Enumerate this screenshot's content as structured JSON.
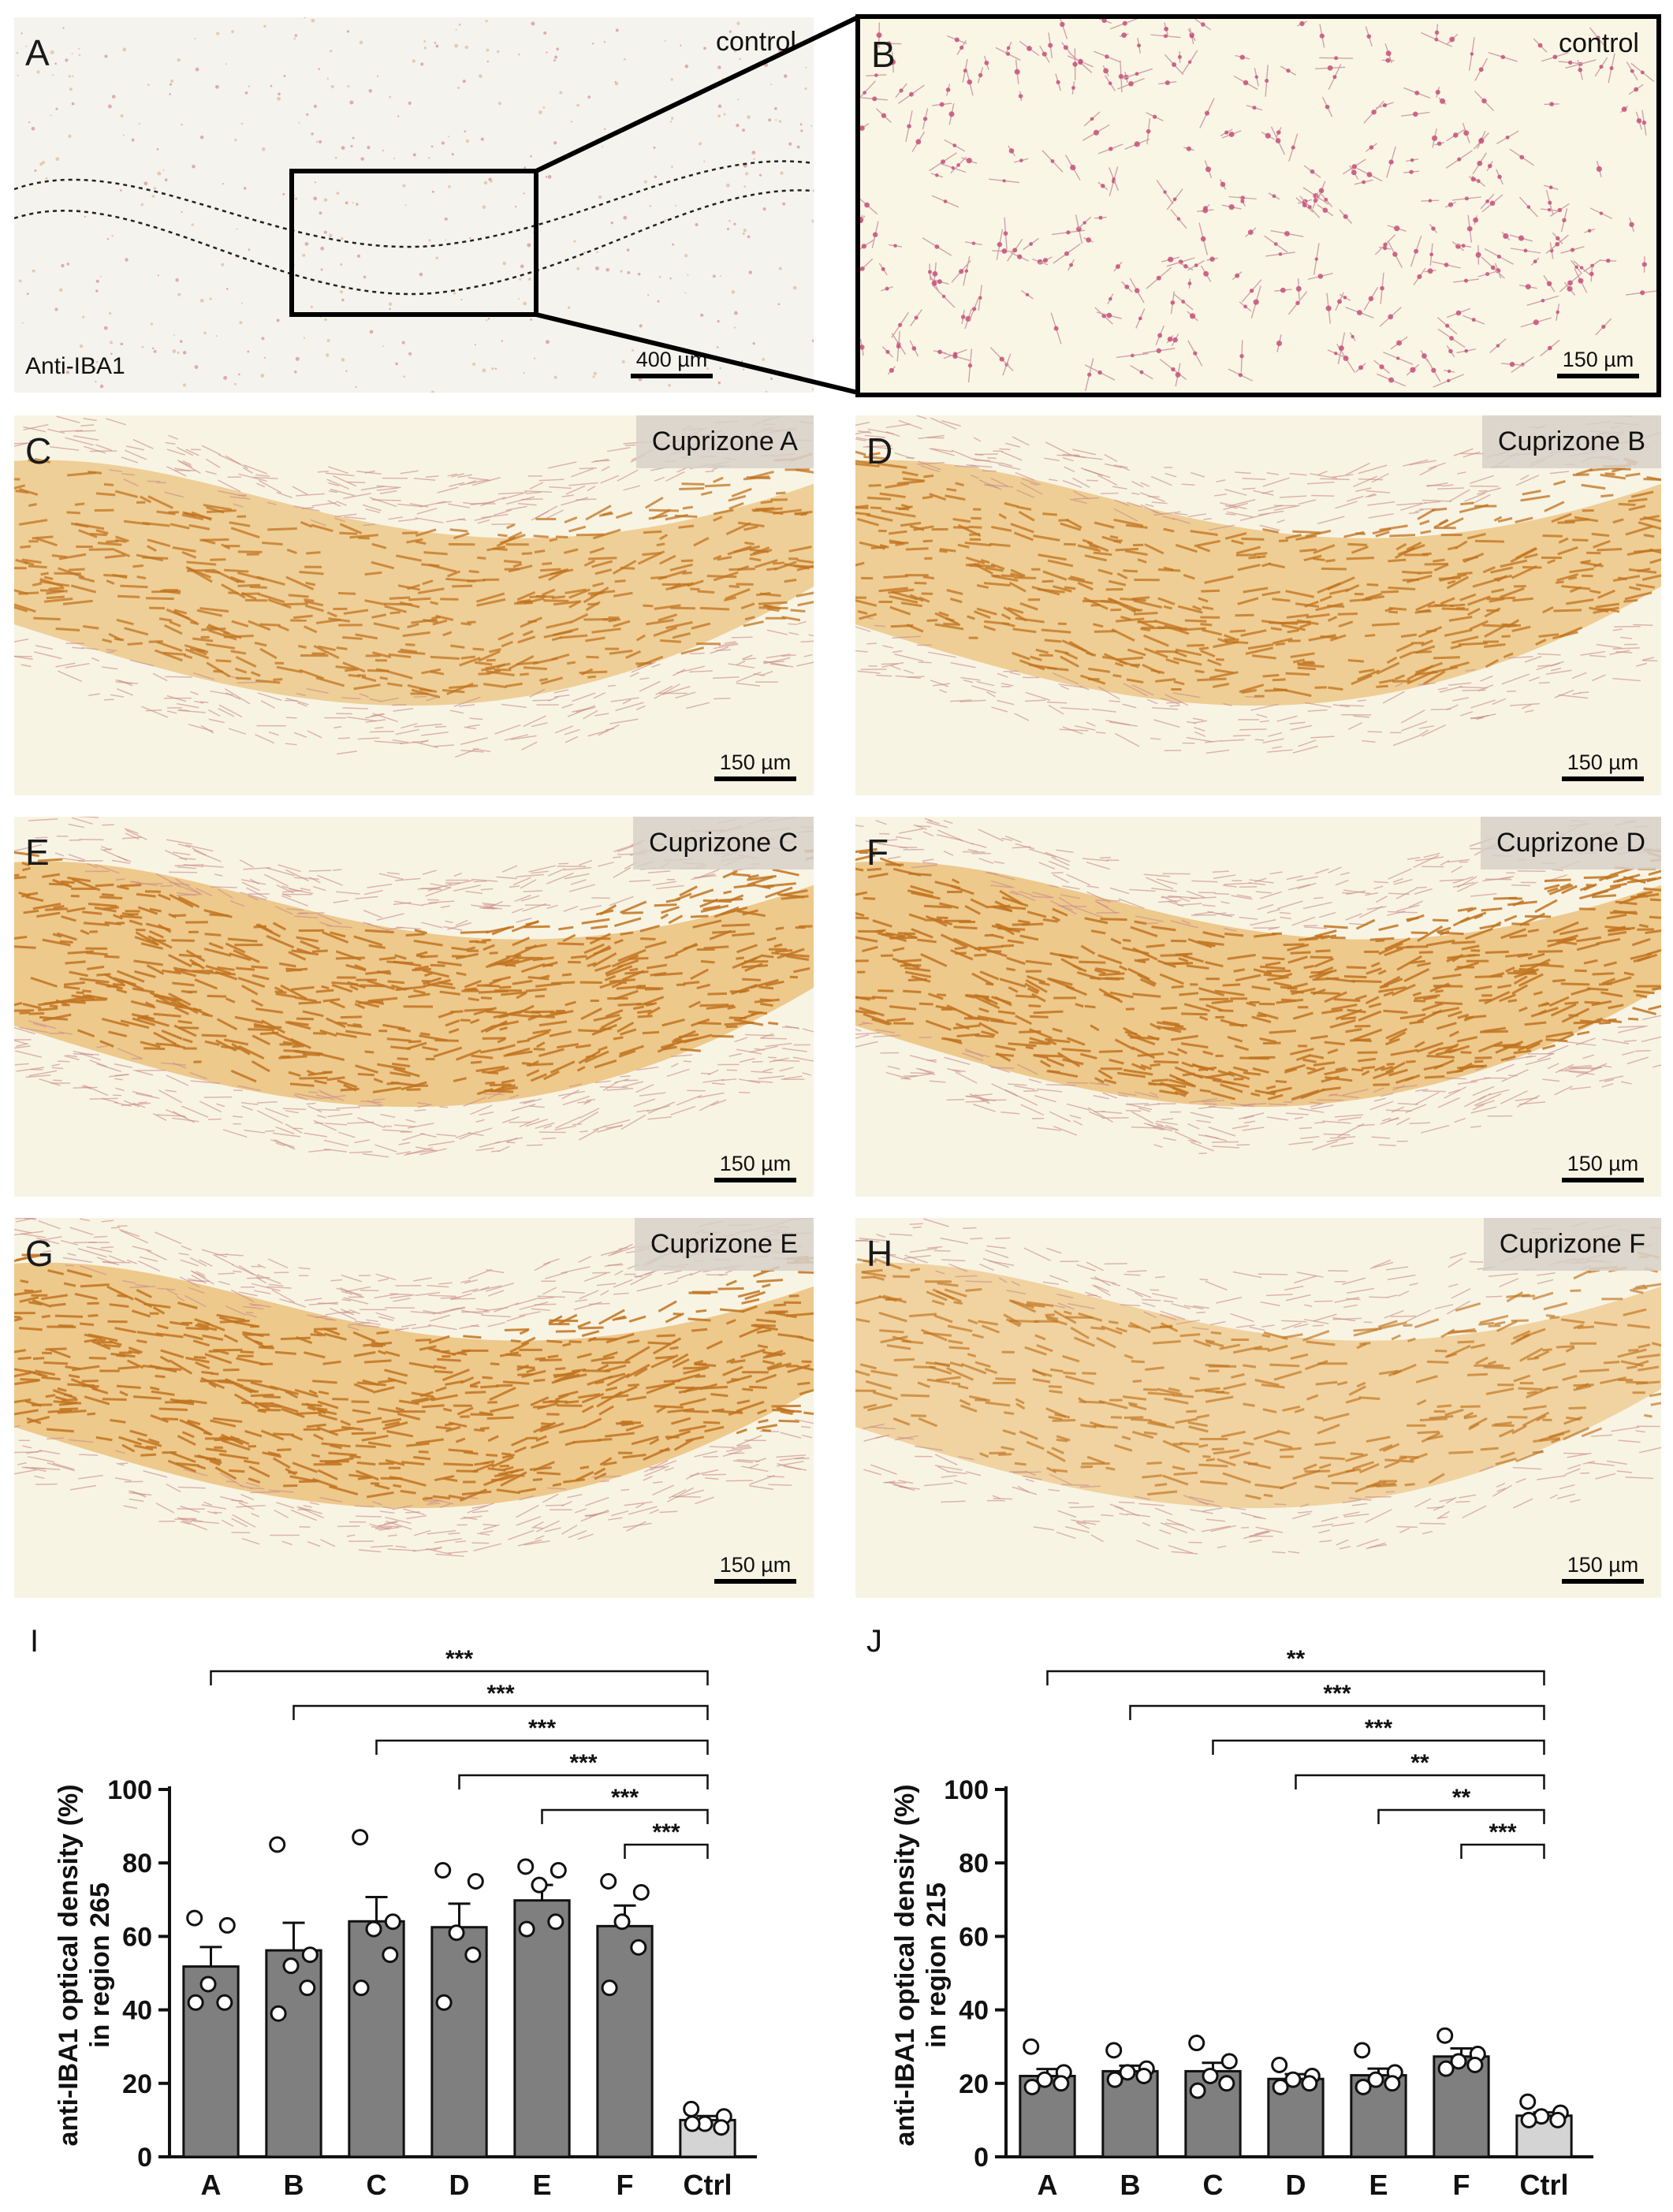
{
  "images": {
    "A": {
      "label": "A",
      "condition": "control",
      "scale": "400 µm",
      "stain": "Anti-IBA1"
    },
    "B": {
      "label": "B",
      "condition": "control",
      "scale": "150 µm"
    },
    "C": {
      "label": "C",
      "condition": "Cuprizone A",
      "scale": "150 µm"
    },
    "D": {
      "label": "D",
      "condition": "Cuprizone B",
      "scale": "150 µm"
    },
    "E": {
      "label": "E",
      "condition": "Cuprizone C",
      "scale": "150 µm"
    },
    "F": {
      "label": "F",
      "condition": "Cuprizone D",
      "scale": "150 µm"
    },
    "G": {
      "label": "G",
      "condition": "Cuprizone E",
      "scale": "150 µm"
    },
    "H": {
      "label": "H",
      "condition": "Cuprizone F",
      "scale": "150 µm"
    }
  },
  "colors": {
    "bar": "#7f7f7f",
    "ctrl_bar": "#d4d4d4",
    "stain_dark": "#c2741f",
    "stain_light": "#e8b766",
    "microglia": "#c8507a",
    "tissue_bg": "#f8f4e4"
  },
  "chart_data": [
    {
      "panel": "I",
      "type": "bar",
      "ylabel_line1": "anti-IBA1 optical density (%)",
      "ylabel_line2": "in region 265",
      "categories": [
        "A",
        "B",
        "C",
        "D",
        "E",
        "F",
        "Ctrl"
      ],
      "values": [
        51.8,
        56.2,
        64.1,
        62.5,
        69.8,
        62.8,
        10.0
      ],
      "sem": [
        5.3,
        7.5,
        6.6,
        6.4,
        4.2,
        5.6,
        1.1
      ],
      "points": [
        [
          65,
          63,
          47,
          42,
          42
        ],
        [
          85,
          55,
          52,
          46,
          39
        ],
        [
          87,
          64,
          62,
          55,
          46
        ],
        [
          78,
          75,
          61,
          55,
          42
        ],
        [
          79,
          78,
          74,
          64,
          62
        ],
        [
          75,
          72,
          64,
          57,
          46
        ],
        [
          13,
          11,
          9,
          8,
          9
        ]
      ],
      "ylim": [
        0,
        100
      ],
      "yticks": [
        0,
        20,
        40,
        60,
        80,
        100
      ],
      "comparisons": [
        {
          "from": "A",
          "to": "Ctrl",
          "label": "***"
        },
        {
          "from": "B",
          "to": "Ctrl",
          "label": "***"
        },
        {
          "from": "C",
          "to": "Ctrl",
          "label": "***"
        },
        {
          "from": "D",
          "to": "Ctrl",
          "label": "***"
        },
        {
          "from": "E",
          "to": "Ctrl",
          "label": "***"
        },
        {
          "from": "F",
          "to": "Ctrl",
          "label": "***"
        }
      ]
    },
    {
      "panel": "J",
      "type": "bar",
      "ylabel_line1": "anti-IBA1 optical density (%)",
      "ylabel_line2": "in region 215",
      "categories": [
        "A",
        "B",
        "C",
        "D",
        "E",
        "F",
        "Ctrl"
      ],
      "values": [
        22.0,
        23.3,
        23.3,
        21.2,
        22.2,
        27.3,
        11.2
      ],
      "sem": [
        1.9,
        1.5,
        2.3,
        1.3,
        1.8,
        2.2,
        0.9
      ],
      "points": [
        [
          30,
          23,
          21,
          20,
          19
        ],
        [
          29,
          24,
          23,
          22,
          21
        ],
        [
          31,
          26,
          22,
          20,
          18
        ],
        [
          25,
          22,
          21,
          20,
          19
        ],
        [
          29,
          23,
          21,
          20,
          19
        ],
        [
          33,
          28,
          26,
          25,
          24
        ],
        [
          15,
          12,
          11,
          10,
          10
        ]
      ],
      "ylim": [
        0,
        100
      ],
      "yticks": [
        0,
        20,
        40,
        60,
        80,
        100
      ],
      "comparisons": [
        {
          "from": "A",
          "to": "Ctrl",
          "label": "**"
        },
        {
          "from": "B",
          "to": "Ctrl",
          "label": "***"
        },
        {
          "from": "C",
          "to": "Ctrl",
          "label": "***"
        },
        {
          "from": "D",
          "to": "Ctrl",
          "label": "**"
        },
        {
          "from": "E",
          "to": "Ctrl",
          "label": "**"
        },
        {
          "from": "F",
          "to": "Ctrl",
          "label": "***"
        }
      ]
    }
  ]
}
